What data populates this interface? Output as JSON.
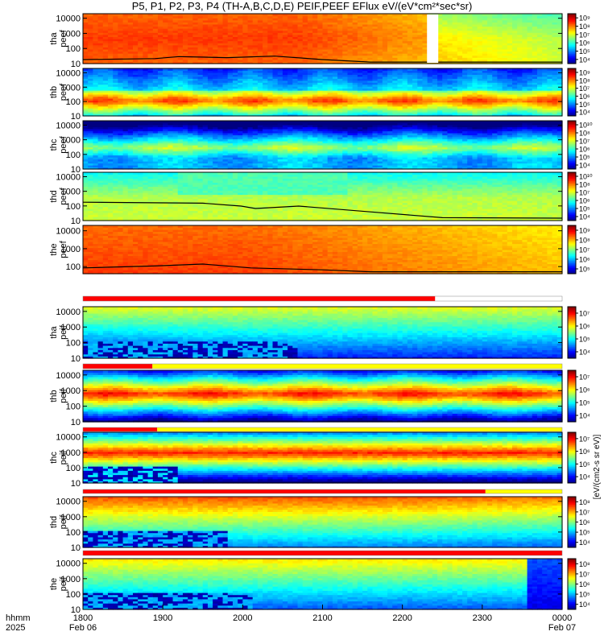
{
  "title": "P5, P1, P2, P3, P4 (TH-A,B,C,D,E) PEIF,PEEF EFlux eV/(eV*cm²*sec*sr)",
  "colorbar_unit": "[eV/(cm2-s sr eV)]",
  "chart_data": {
    "type": "heatmap",
    "x_axis": {
      "ticks": [
        "1800",
        "1900",
        "2000",
        "2100",
        "2200",
        "2300",
        "0000"
      ],
      "range": [
        "2025-02-06 18:00",
        "2025-02-07 00:00"
      ],
      "date_labels": {
        "1800": "Feb 06",
        "0000": "Feb 07"
      },
      "row_label_1": "hhmm",
      "row_label_2": "2025"
    },
    "colormap": [
      "#000080",
      "#0000ff",
      "#0080ff",
      "#00ffff",
      "#80ff80",
      "#ffff00",
      "#ff8000",
      "#ff0000",
      "#800000"
    ],
    "panels": [
      {
        "probe": "tha",
        "species": "peef",
        "ylabel": "tha\npeef",
        "yticks": [
          "10",
          "100",
          "1000",
          "10000"
        ],
        "ylog": true,
        "cbar_ticks": [
          "10⁴",
          "10⁵",
          "10⁶",
          "10⁷",
          "10⁸",
          "10⁹"
        ]
      },
      {
        "probe": "thb",
        "species": "peef",
        "ylabel": "thb\npeef",
        "yticks": [
          "10",
          "100",
          "1000",
          "10000"
        ],
        "ylog": true,
        "cbar_ticks": [
          "10⁴",
          "10⁵",
          "10⁶",
          "10⁷",
          "10⁸",
          "10⁹"
        ]
      },
      {
        "probe": "thc",
        "species": "peef",
        "ylabel": "thc\npeef",
        "yticks": [
          "10",
          "100",
          "1000",
          "10000"
        ],
        "ylog": true,
        "cbar_ticks": [
          "10⁴",
          "10⁵",
          "10⁶",
          "10⁷",
          "10⁸",
          "10¹⁰"
        ]
      },
      {
        "probe": "thd",
        "species": "peef",
        "ylabel": "thd\npeef",
        "yticks": [
          "10",
          "100",
          "1000",
          "10000"
        ],
        "ylog": true,
        "cbar_ticks": [
          "10⁴",
          "10⁵",
          "10⁶",
          "10⁷",
          "10⁸",
          "10¹⁰"
        ]
      },
      {
        "probe": "the",
        "species": "peef",
        "ylabel": "the\npeef",
        "yticks": [
          "100",
          "1000",
          "10000"
        ],
        "ylog": true,
        "cbar_ticks": [
          "10⁵",
          "10⁶",
          "10⁷",
          "10⁸",
          "10⁹"
        ]
      },
      {
        "probe": "tha",
        "species": "peif",
        "ylabel": "tha\npeif",
        "yticks": [
          "10",
          "100",
          "1000",
          "10000"
        ],
        "ylog": true,
        "cbar_ticks": [
          "10⁴",
          "10⁵",
          "10⁶",
          "10⁷"
        ]
      },
      {
        "probe": "thb",
        "species": "peif",
        "ylabel": "thb\npeif",
        "yticks": [
          "10",
          "100",
          "1000",
          "10000"
        ],
        "ylog": true,
        "cbar_ticks": [
          "10⁴",
          "10⁵",
          "10⁶",
          "10⁷"
        ]
      },
      {
        "probe": "thc",
        "species": "peif",
        "ylabel": "thc\npeif",
        "yticks": [
          "10",
          "100",
          "1000",
          "10000"
        ],
        "ylog": true,
        "cbar_ticks": [
          "10⁴",
          "10⁵",
          "10⁶",
          "10⁷"
        ]
      },
      {
        "probe": "thd",
        "species": "peif",
        "ylabel": "thd\npeif",
        "yticks": [
          "10",
          "100",
          "1000",
          "10000"
        ],
        "ylog": true,
        "cbar_ticks": [
          "10⁴",
          "10⁵",
          "10⁶",
          "10⁷",
          "10⁸"
        ]
      },
      {
        "probe": "the",
        "species": "peif",
        "ylabel": "the\npeif",
        "yticks": [
          "10",
          "100",
          "1000",
          "10000"
        ],
        "ylog": true,
        "cbar_ticks": [
          "10⁴",
          "10⁵",
          "10⁶",
          "10⁷",
          "10⁸"
        ]
      }
    ]
  }
}
